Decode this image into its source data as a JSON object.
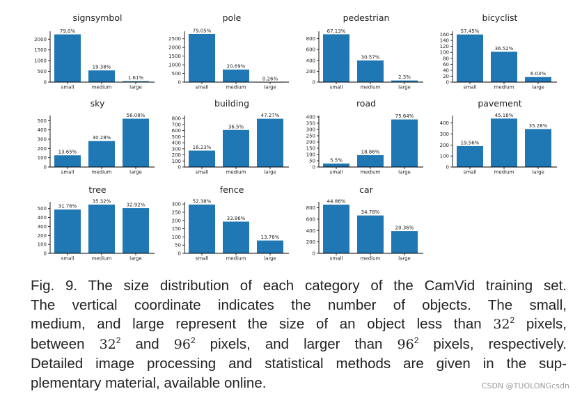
{
  "colors": {
    "bar": "#1f77b4",
    "text": "#222222",
    "axis": "#000000"
  },
  "chart_data": [
    {
      "type": "bar",
      "title": "signsymbol",
      "categories": [
        "small",
        "medium",
        "large"
      ],
      "values": [
        2220,
        545,
        45
      ],
      "labels": [
        "79.0%",
        "19.38%",
        "1.61%"
      ],
      "yticks": [
        0,
        500,
        1000,
        1500,
        2000
      ],
      "ylim": [
        0,
        2300
      ]
    },
    {
      "type": "bar",
      "title": "pole",
      "categories": [
        "small",
        "medium",
        "large"
      ],
      "values": [
        2770,
        725,
        9
      ],
      "labels": [
        "79.05%",
        "20.69%",
        "0.26%"
      ],
      "yticks": [
        0,
        500,
        1000,
        1500,
        2000,
        2500
      ],
      "ylim": [
        0,
        2850
      ]
    },
    {
      "type": "bar",
      "title": "pedestrian",
      "categories": [
        "small",
        "medium",
        "large"
      ],
      "values": [
        880,
        400,
        30
      ],
      "labels": [
        "67.13%",
        "30.57%",
        "2.3%"
      ],
      "yticks": [
        0,
        200,
        400,
        600,
        800
      ],
      "ylim": [
        0,
        910
      ]
    },
    {
      "type": "bar",
      "title": "bicyclist",
      "categories": [
        "small",
        "medium",
        "large"
      ],
      "values": [
        160,
        102,
        17
      ],
      "labels": [
        "57.45%",
        "36.52%",
        "6.03%"
      ],
      "yticks": [
        0,
        20,
        40,
        60,
        80,
        100,
        120,
        140,
        160
      ],
      "ylim": [
        0,
        166
      ]
    },
    {
      "type": "bar",
      "title": "sky",
      "categories": [
        "small",
        "medium",
        "large"
      ],
      "values": [
        126,
        280,
        521
      ],
      "labels": [
        "13.65%",
        "30.28%",
        "56.08%"
      ],
      "yticks": [
        0,
        100,
        200,
        300,
        400,
        500
      ],
      "ylim": [
        0,
        540
      ]
    },
    {
      "type": "bar",
      "title": "building",
      "categories": [
        "small",
        "medium",
        "large"
      ],
      "values": [
        270,
        610,
        795
      ],
      "labels": [
        "16.23%",
        "36.5%",
        "47.27%"
      ],
      "yticks": [
        0,
        100,
        200,
        300,
        400,
        500,
        600,
        700,
        800
      ],
      "ylim": [
        0,
        825
      ]
    },
    {
      "type": "bar",
      "title": "road",
      "categories": [
        "small",
        "medium",
        "large"
      ],
      "values": [
        28,
        95,
        380
      ],
      "labels": [
        "5.5%",
        "18.86%",
        "75.64%"
      ],
      "yticks": [
        0,
        50,
        100,
        150,
        200,
        250,
        300,
        350,
        400
      ],
      "ylim": [
        0,
        400
      ]
    },
    {
      "type": "bar",
      "title": "pavement",
      "categories": [
        "small",
        "medium",
        "large"
      ],
      "values": [
        190,
        440,
        345
      ],
      "labels": [
        "19.56%",
        "45.16%",
        "35.28%"
      ],
      "yticks": [
        0,
        100,
        200,
        300,
        400
      ],
      "ylim": [
        0,
        455
      ]
    },
    {
      "type": "bar",
      "title": "tree",
      "categories": [
        "small",
        "medium",
        "large"
      ],
      "values": [
        490,
        545,
        505
      ],
      "labels": [
        "31.76%",
        "35.32%",
        "32.92%"
      ],
      "yticks": [
        0,
        100,
        200,
        300,
        400,
        500
      ],
      "ylim": [
        0,
        560
      ]
    },
    {
      "type": "bar",
      "title": "fence",
      "categories": [
        "small",
        "medium",
        "large"
      ],
      "values": [
        297,
        193,
        78
      ],
      "labels": [
        "52.38%",
        "33.86%",
        "13.76%"
      ],
      "yticks": [
        0,
        50,
        100,
        150,
        200,
        250,
        300
      ],
      "ylim": [
        0,
        305
      ]
    },
    {
      "type": "bar",
      "title": "car",
      "categories": [
        "small",
        "medium",
        "large"
      ],
      "values": [
        855,
        665,
        390
      ],
      "labels": [
        "44.86%",
        "34.78%",
        "20.36%"
      ],
      "yticks": [
        0,
        200,
        400,
        600,
        800
      ],
      "ylim": [
        0,
        880
      ]
    }
  ],
  "caption": {
    "line1": "Fig. 9. The size distribution of each category of the CamVid training set.",
    "line2": "The vertical coordinate indicates the number of objects. The small,",
    "line3a": "medium, and large represent the size of an object less than ",
    "line3b": " pixels,",
    "line4a": "between ",
    "line4b": " and ",
    "line4c": " pixels, and larger than ",
    "line4d": " pixels, respectively.",
    "line5": "Detailed image processing and statistical methods are given in the sup-",
    "line6": "plementary material, available online.",
    "num32": "32",
    "num96": "96",
    "exp2": "2"
  },
  "watermark": "CSDN @TUOLONGcsdn"
}
